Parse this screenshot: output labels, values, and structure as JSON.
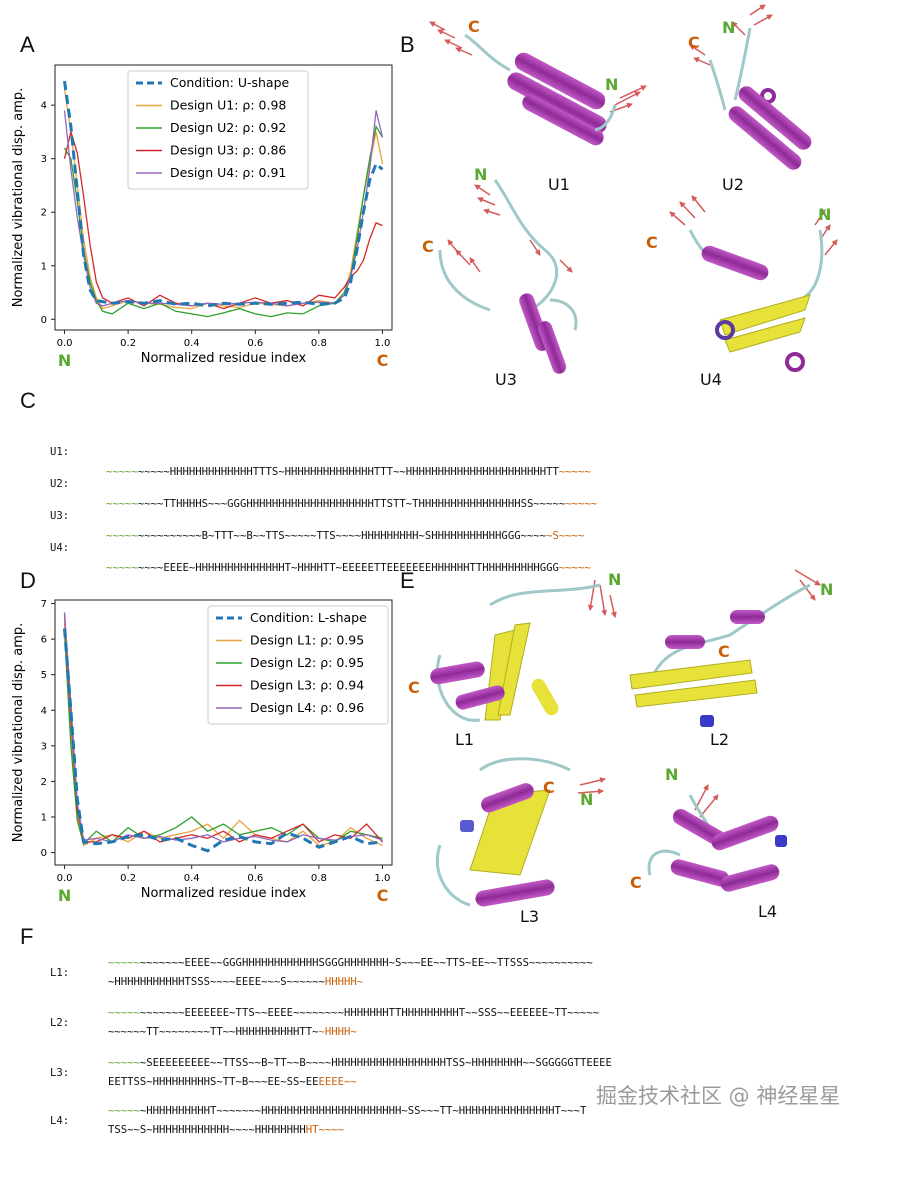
{
  "panels": {
    "A": "A",
    "B": "B",
    "C": "C",
    "D": "D",
    "E": "E",
    "F": "F"
  },
  "chartA": {
    "chart_data": {
      "type": "line",
      "xlabel": "Normalized residue index",
      "ylabel": "Normalized vibrational disp. amp.",
      "xlim": [
        -0.03,
        1.03
      ],
      "ylim": [
        -0.2,
        4.75
      ],
      "xticks": [
        0.0,
        0.2,
        0.4,
        0.6,
        0.8,
        1.0
      ],
      "yticks": [
        0,
        1,
        2,
        3,
        4
      ],
      "n_label": "N",
      "c_label": "C",
      "series": [
        {
          "name": "Condition: U-shape",
          "color": "#1f77b4",
          "dashed": true,
          "x": [
            0,
            0.02,
            0.04,
            0.06,
            0.08,
            0.1,
            0.15,
            0.2,
            0.25,
            0.3,
            0.35,
            0.4,
            0.45,
            0.5,
            0.55,
            0.6,
            0.65,
            0.7,
            0.75,
            0.8,
            0.85,
            0.88,
            0.9,
            0.92,
            0.94,
            0.96,
            0.98,
            1.0
          ],
          "y": [
            4.45,
            3.6,
            2.4,
            1.2,
            0.55,
            0.35,
            0.3,
            0.33,
            0.3,
            0.35,
            0.28,
            0.3,
            0.25,
            0.3,
            0.28,
            0.3,
            0.28,
            0.3,
            0.32,
            0.28,
            0.3,
            0.4,
            0.7,
            1.3,
            2.0,
            2.6,
            2.9,
            2.8
          ]
        },
        {
          "name": "Design U1: ρ: 0.98",
          "color": "#e8a33d",
          "dashed": false,
          "x": [
            0,
            0.02,
            0.04,
            0.06,
            0.08,
            0.1,
            0.12,
            0.15,
            0.2,
            0.25,
            0.3,
            0.35,
            0.4,
            0.45,
            0.5,
            0.55,
            0.6,
            0.65,
            0.7,
            0.75,
            0.8,
            0.85,
            0.88,
            0.9,
            0.92,
            0.94,
            0.96,
            0.98,
            1.0
          ],
          "y": [
            4.3,
            3.5,
            2.5,
            1.5,
            0.8,
            0.4,
            0.2,
            0.25,
            0.35,
            0.3,
            0.28,
            0.22,
            0.2,
            0.3,
            0.25,
            0.22,
            0.3,
            0.28,
            0.25,
            0.3,
            0.35,
            0.3,
            0.5,
            0.9,
            1.6,
            2.3,
            2.9,
            3.5,
            2.9
          ]
        },
        {
          "name": "Design U2: ρ: 0.92",
          "color": "#2ca02c",
          "dashed": false,
          "x": [
            0,
            0.02,
            0.04,
            0.06,
            0.08,
            0.1,
            0.12,
            0.15,
            0.2,
            0.25,
            0.3,
            0.35,
            0.4,
            0.45,
            0.5,
            0.55,
            0.6,
            0.65,
            0.7,
            0.75,
            0.8,
            0.85,
            0.88,
            0.9,
            0.92,
            0.94,
            0.96,
            0.98,
            1.0
          ],
          "y": [
            3.2,
            3.0,
            2.2,
            1.3,
            0.7,
            0.35,
            0.15,
            0.1,
            0.3,
            0.2,
            0.3,
            0.15,
            0.1,
            0.05,
            0.12,
            0.2,
            0.1,
            0.05,
            0.12,
            0.1,
            0.25,
            0.3,
            0.5,
            0.8,
            1.5,
            2.3,
            3.0,
            3.6,
            3.4
          ]
        },
        {
          "name": "Design U3: ρ: 0.86",
          "color": "#d62728",
          "dashed": false,
          "x": [
            0,
            0.02,
            0.04,
            0.06,
            0.08,
            0.1,
            0.12,
            0.15,
            0.2,
            0.25,
            0.3,
            0.35,
            0.4,
            0.45,
            0.5,
            0.55,
            0.6,
            0.65,
            0.7,
            0.75,
            0.8,
            0.85,
            0.88,
            0.9,
            0.92,
            0.94,
            0.96,
            0.98,
            1.0
          ],
          "y": [
            3.0,
            3.5,
            3.1,
            2.3,
            1.4,
            0.7,
            0.4,
            0.3,
            0.4,
            0.25,
            0.45,
            0.3,
            0.25,
            0.3,
            0.2,
            0.3,
            0.4,
            0.3,
            0.35,
            0.25,
            0.45,
            0.4,
            0.6,
            0.8,
            0.9,
            1.1,
            1.5,
            1.8,
            1.75
          ]
        },
        {
          "name": "Design U4: ρ: 0.91",
          "color": "#9467bd",
          "dashed": false,
          "x": [
            0,
            0.02,
            0.04,
            0.06,
            0.08,
            0.1,
            0.12,
            0.15,
            0.2,
            0.25,
            0.3,
            0.35,
            0.4,
            0.45,
            0.5,
            0.55,
            0.6,
            0.65,
            0.7,
            0.75,
            0.8,
            0.85,
            0.88,
            0.9,
            0.92,
            0.94,
            0.96,
            0.98,
            1.0
          ],
          "y": [
            3.9,
            2.8,
            1.9,
            1.2,
            0.6,
            0.3,
            0.25,
            0.3,
            0.35,
            0.3,
            0.3,
            0.28,
            0.25,
            0.3,
            0.28,
            0.3,
            0.32,
            0.3,
            0.25,
            0.3,
            0.32,
            0.3,
            0.45,
            0.8,
            1.3,
            2.0,
            2.8,
            3.9,
            3.4
          ]
        }
      ]
    }
  },
  "chartD": {
    "chart_data": {
      "type": "line",
      "xlabel": "Normalized residue index",
      "ylabel": "Normalized vibrational disp. amp.",
      "xlim": [
        -0.03,
        1.03
      ],
      "ylim": [
        -0.35,
        7.1
      ],
      "xticks": [
        0.0,
        0.2,
        0.4,
        0.6,
        0.8,
        1.0
      ],
      "yticks": [
        0,
        1,
        2,
        3,
        4,
        5,
        6,
        7
      ],
      "n_label": "N",
      "c_label": "C",
      "series": [
        {
          "name": "Condition: L-shape",
          "color": "#1f77b4",
          "dashed": true,
          "x": [
            0,
            0.02,
            0.04,
            0.06,
            0.1,
            0.15,
            0.2,
            0.25,
            0.3,
            0.35,
            0.4,
            0.45,
            0.5,
            0.55,
            0.6,
            0.65,
            0.7,
            0.75,
            0.8,
            0.85,
            0.9,
            0.95,
            1.0
          ],
          "y": [
            6.3,
            4.0,
            1.5,
            0.3,
            0.25,
            0.3,
            0.45,
            0.5,
            0.35,
            0.4,
            0.2,
            0.05,
            0.35,
            0.45,
            0.3,
            0.25,
            0.55,
            0.4,
            0.15,
            0.3,
            0.45,
            0.25,
            0.3
          ]
        },
        {
          "name": "Design L1: ρ: 0.95",
          "color": "#e8a33d",
          "dashed": false,
          "x": [
            0,
            0.02,
            0.04,
            0.06,
            0.1,
            0.15,
            0.2,
            0.25,
            0.3,
            0.35,
            0.4,
            0.45,
            0.5,
            0.55,
            0.6,
            0.65,
            0.7,
            0.75,
            0.8,
            0.85,
            0.9,
            0.95,
            1.0
          ],
          "y": [
            6.5,
            3.5,
            1.0,
            0.2,
            0.4,
            0.5,
            0.3,
            0.6,
            0.4,
            0.5,
            0.6,
            0.8,
            0.4,
            0.9,
            0.5,
            0.4,
            0.3,
            0.6,
            0.2,
            0.3,
            0.7,
            0.4,
            0.2
          ]
        },
        {
          "name": "Design L2: ρ: 0.95",
          "color": "#2ca02c",
          "dashed": false,
          "x": [
            0,
            0.02,
            0.04,
            0.06,
            0.1,
            0.15,
            0.2,
            0.25,
            0.3,
            0.35,
            0.4,
            0.45,
            0.5,
            0.55,
            0.6,
            0.65,
            0.7,
            0.75,
            0.8,
            0.85,
            0.9,
            0.95,
            1.0
          ],
          "y": [
            6.2,
            3.0,
            0.9,
            0.25,
            0.6,
            0.3,
            0.7,
            0.4,
            0.5,
            0.7,
            1.0,
            0.6,
            0.8,
            0.5,
            0.6,
            0.7,
            0.5,
            0.8,
            0.4,
            0.3,
            0.6,
            0.5,
            0.4
          ]
        },
        {
          "name": "Design L3: ρ: 0.94",
          "color": "#d62728",
          "dashed": false,
          "x": [
            0,
            0.02,
            0.04,
            0.06,
            0.1,
            0.15,
            0.2,
            0.25,
            0.3,
            0.35,
            0.4,
            0.45,
            0.5,
            0.55,
            0.6,
            0.65,
            0.7,
            0.75,
            0.8,
            0.85,
            0.9,
            0.95,
            1.0
          ],
          "y": [
            6.7,
            3.8,
            1.2,
            0.3,
            0.3,
            0.5,
            0.4,
            0.6,
            0.3,
            0.4,
            0.5,
            0.4,
            0.6,
            0.3,
            0.5,
            0.4,
            0.6,
            0.8,
            0.3,
            0.5,
            0.4,
            0.8,
            0.3
          ]
        },
        {
          "name": "Design L4: ρ: 0.96",
          "color": "#9467bd",
          "dashed": false,
          "x": [
            0,
            0.02,
            0.04,
            0.06,
            0.1,
            0.15,
            0.2,
            0.25,
            0.3,
            0.35,
            0.4,
            0.45,
            0.5,
            0.55,
            0.6,
            0.65,
            0.7,
            0.75,
            0.8,
            0.85,
            0.9,
            0.95,
            1.0
          ],
          "y": [
            6.75,
            4.2,
            1.4,
            0.35,
            0.4,
            0.3,
            0.5,
            0.4,
            0.45,
            0.35,
            0.4,
            0.5,
            0.3,
            0.4,
            0.45,
            0.35,
            0.3,
            0.5,
            0.4,
            0.35,
            0.45,
            0.5,
            0.35
          ]
        }
      ]
    }
  },
  "structB": {
    "u1": {
      "label": "U1",
      "n": "N",
      "c": "C"
    },
    "u2": {
      "label": "U2",
      "n": "N",
      "c": "C"
    },
    "u3": {
      "label": "U3",
      "n": "N",
      "c": "C"
    },
    "u4": {
      "label": "U4",
      "n": "N",
      "c": "C"
    }
  },
  "structE": {
    "l1": {
      "label": "L1",
      "n": "N",
      "c": "C"
    },
    "l2": {
      "label": "L2",
      "n": "N",
      "c": "C"
    },
    "l3": {
      "label": "L3",
      "n": "N",
      "c": "C"
    },
    "l4": {
      "label": "L4",
      "n": "N",
      "c": "C"
    }
  },
  "seqC": [
    {
      "label": "U1:",
      "g": "~~~~~",
      "m": "~~~~~HHHHHHHHHHHHHTTTS~HHHHHHHHHHHHHHTTT~~HHHHHHHHHHHHHHHHHHHHHHTT",
      "o": "~~~~~"
    },
    {
      "label": "U2:",
      "g": "~~~~~",
      "m": "~~~~TTHHHHS~~~GGGHHHHHHHHHHHHHHHHHHHHTTSTT~THHHHHHHHHHHHHHHHSS~~~~~",
      "o": "~~~~~"
    },
    {
      "label": "U3:",
      "g": "~~~~~",
      "m": "~~~~~~~~~~B~TTT~~B~~TTS~~~~~TTS~~~~HHHHHHHHH~SHHHHHHHHHHHGGG~~~~",
      "o": "~S~~~~"
    },
    {
      "label": "U4:",
      "g": "~~~~~",
      "m": "~~~~EEEE~HHHHHHHHHHHHHHT~HHHHTT~EEEEETTEEEEEEEHHHHHHTTHHHHHHHHHGGG",
      "o": "~~~~~"
    }
  ],
  "seqF": [
    {
      "label": "L1:",
      "l1g": "~~~~~",
      "l1m": "~~~~~~~EEEE~~GGGHHHHHHHHHHHHSGGGHHHHHHH~S~~~EE~~TTS~EE~~TTSSS~~~~~~~~~~",
      "l1o": "",
      "l2g": "",
      "l2m": "~HHHHHHHHHHHTSSS~~~~EEEE~~~S~~~~~~",
      "l2o": "HHHHH~"
    },
    {
      "label": "L2:",
      "l1g": "~~~~~",
      "l1m": "~~~~~~~EEEEEEE~TTS~~EEEE~~~~~~~~HHHHHHHTTHHHHHHHHHT~~SSS~~EEEEEE~TT~~~~~",
      "l1o": "",
      "l2g": "",
      "l2m": "~~~~~~TT~~~~~~~~TT~~HHHHHHHHHHTT~",
      "l2o": "~HHHH~"
    },
    {
      "label": "L3:",
      "l1g": "~~~~~",
      "l1m": "~SEEEEEEEEE~~TTSS~~B~TT~~B~~~~HHHHHHHHHHHHHHHHHHTSS~HHHHHHHH~~SGGGGGTTEEEE",
      "l1o": "",
      "l2g": "",
      "l2m": "EETTSS~HHHHHHHHHS~TT~B~~~EE~SS~EE",
      "l2o": "EEEE~~"
    },
    {
      "label": "L4:",
      "l1g": "~~~~~",
      "l1m": "~HHHHHHHHHHT~~~~~~~HHHHHHHHHHHHHHHHHHHHHH~SS~~~TT~HHHHHHHHHHHHHHHT~~~T",
      "l1o": "",
      "l2g": "",
      "l2m": "TSS~~S~HHHHHHHHHHHH~~~~HHHHHHHH",
      "l2o": "HT~~~~"
    }
  ],
  "watermark": "掘金技术社区 @ 神经星星",
  "colors": {
    "n_green": "#5aa832",
    "c_orange": "#c8600a",
    "helix": "#a23ca8",
    "sheet": "#e6e23a",
    "loop": "#7fbfbf",
    "arrow": "#d65a5a"
  }
}
